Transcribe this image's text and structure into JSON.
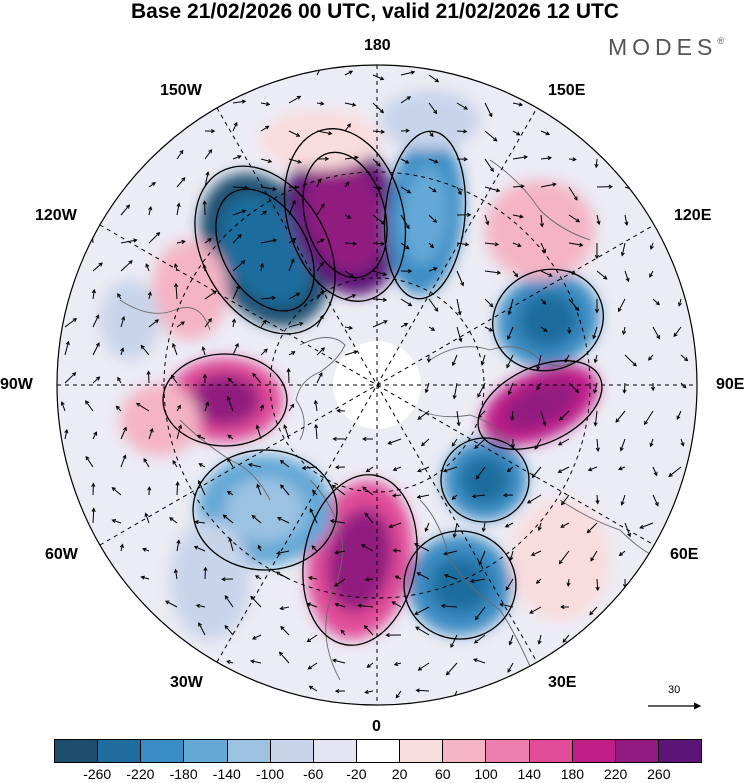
{
  "header": {
    "title": "Base 21/02/2026 00 UTC, valid 21/02/2026 12 UTC",
    "brand": "MODES",
    "brand_mark": "®"
  },
  "map": {
    "projection": "north polar stereographic",
    "longitude_labels": {
      "top": "180",
      "bottom": "0",
      "left": "90W",
      "right": "90E",
      "upper_left_1": "150W",
      "upper_left_2": "120W",
      "upper_right_1": "150E",
      "upper_right_2": "120E",
      "lower_left_1": "60W",
      "lower_left_2": "30W",
      "lower_right_1": "60E",
      "lower_right_2": "30E"
    },
    "reference_vector": {
      "label": "30"
    }
  },
  "colorbar": {
    "colors": [
      "#1a4d6e",
      "#1f6d9e",
      "#3a8cc4",
      "#64a8d6",
      "#9cc2e2",
      "#c8d4ea",
      "#e4e4f2",
      "#ffffff",
      "#f9dcdc",
      "#f4b4c4",
      "#ec7fae",
      "#e04c98",
      "#c01e88",
      "#911a80",
      "#5c1478"
    ],
    "ticks": [
      "-260",
      "-220",
      "-180",
      "-140",
      "-100",
      "-60",
      "-20",
      "20",
      "60",
      "100",
      "140",
      "180",
      "220",
      "260"
    ]
  }
}
